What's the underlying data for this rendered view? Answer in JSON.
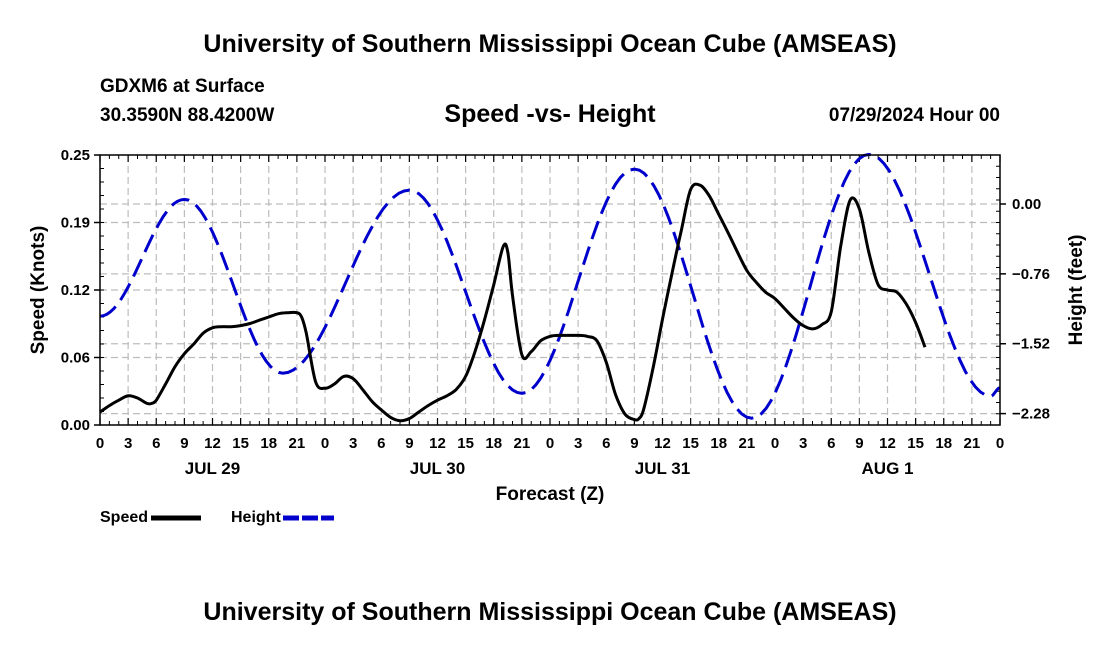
{
  "header": {
    "title": "University of Southern Mississippi Ocean Cube (AMSEAS)",
    "station": "GDXM6 at Surface",
    "coords": "30.3590N  88.4200W",
    "subtitle": "Speed -vs- Height",
    "run_time": "07/29/2024 Hour 00"
  },
  "footer": {
    "title": "University of Southern Mississippi Ocean Cube (AMSEAS)"
  },
  "legend": {
    "speed_label": "Speed",
    "height_label": "Height"
  },
  "colors": {
    "speed": "#000000",
    "height": "#0000cc",
    "grid": "#bdbdbd"
  },
  "chart_data": {
    "type": "line",
    "title": "Speed -vs- Height",
    "xlabel": "Forecast (Z)",
    "ylabel_left": "Speed (Knots)",
    "ylabel_right": "Height (feet)",
    "x_range_hours": [
      0,
      96
    ],
    "x_tick_labels": [
      "0",
      "3",
      "6",
      "9",
      "12",
      "15",
      "18",
      "21",
      "0",
      "3",
      "6",
      "9",
      "12",
      "15",
      "18",
      "21",
      "0",
      "3",
      "6",
      "9",
      "12",
      "15",
      "18",
      "21",
      "0",
      "3",
      "6",
      "9",
      "12",
      "15",
      "18",
      "21",
      "0"
    ],
    "day_labels": [
      {
        "label": "JUL 29",
        "hour": 12
      },
      {
        "label": "JUL 30",
        "hour": 36
      },
      {
        "label": "JUL 31",
        "hour": 60
      },
      {
        "label": "AUG 1",
        "hour": 84
      }
    ],
    "ylim_left": [
      0,
      0.25
    ],
    "yticks_left": [
      {
        "value": 0.0,
        "label": "0.00"
      },
      {
        "value": 0.0625,
        "label": "0.06"
      },
      {
        "value": 0.125,
        "label": "0.12"
      },
      {
        "value": 0.1875,
        "label": "0.19"
      },
      {
        "value": 0.25,
        "label": "0.25"
      }
    ],
    "ylim_right": [
      -2.404,
      0.533
    ],
    "yticks_right": [
      {
        "value": 0.0,
        "label": "0.00"
      },
      {
        "value": -0.76,
        "label": "-0.76"
      },
      {
        "value": -1.52,
        "label": "-1.52"
      },
      {
        "value": -2.28,
        "label": "-2.28"
      }
    ],
    "series": [
      {
        "name": "Speed",
        "axis": "left",
        "style": "solid",
        "points": [
          [
            0,
            0.012
          ],
          [
            1,
            0.018
          ],
          [
            2,
            0.023
          ],
          [
            3,
            0.027
          ],
          [
            4,
            0.025
          ],
          [
            5,
            0.02
          ],
          [
            5.5,
            0.02
          ],
          [
            6,
            0.023
          ],
          [
            7,
            0.038
          ],
          [
            8,
            0.054
          ],
          [
            9,
            0.066
          ],
          [
            10,
            0.075
          ],
          [
            11,
            0.085
          ],
          [
            12,
            0.09
          ],
          [
            13,
            0.091
          ],
          [
            14,
            0.091
          ],
          [
            15,
            0.092
          ],
          [
            16,
            0.094
          ],
          [
            17,
            0.097
          ],
          [
            18,
            0.1
          ],
          [
            19,
            0.103
          ],
          [
            20,
            0.104
          ],
          [
            21,
            0.104
          ],
          [
            21.5,
            0.1
          ],
          [
            22,
            0.085
          ],
          [
            23,
            0.04
          ],
          [
            24,
            0.034
          ],
          [
            25,
            0.038
          ],
          [
            26,
            0.045
          ],
          [
            27,
            0.043
          ],
          [
            28,
            0.033
          ],
          [
            29,
            0.022
          ],
          [
            30,
            0.014
          ],
          [
            31,
            0.007
          ],
          [
            32,
            0.004
          ],
          [
            33,
            0.006
          ],
          [
            34,
            0.012
          ],
          [
            35,
            0.018
          ],
          [
            36,
            0.023
          ],
          [
            37,
            0.027
          ],
          [
            38,
            0.033
          ],
          [
            39,
            0.045
          ],
          [
            40,
            0.068
          ],
          [
            41,
            0.097
          ],
          [
            42,
            0.13
          ],
          [
            43,
            0.165
          ],
          [
            43.5,
            0.16
          ],
          [
            44,
            0.12
          ],
          [
            45,
            0.065
          ],
          [
            46,
            0.068
          ],
          [
            47,
            0.078
          ],
          [
            48,
            0.082
          ],
          [
            49,
            0.083
          ],
          [
            50,
            0.083
          ],
          [
            51,
            0.083
          ],
          [
            52,
            0.082
          ],
          [
            53,
            0.078
          ],
          [
            54,
            0.058
          ],
          [
            55,
            0.028
          ],
          [
            56,
            0.01
          ],
          [
            57,
            0.005
          ],
          [
            57.5,
            0.006
          ],
          [
            58,
            0.015
          ],
          [
            59,
            0.053
          ],
          [
            60,
            0.098
          ],
          [
            61,
            0.14
          ],
          [
            62,
            0.18
          ],
          [
            63,
            0.218
          ],
          [
            64,
            0.222
          ],
          [
            65,
            0.212
          ],
          [
            66,
            0.195
          ],
          [
            67,
            0.178
          ],
          [
            68,
            0.16
          ],
          [
            69,
            0.143
          ],
          [
            70,
            0.132
          ],
          [
            71,
            0.123
          ],
          [
            72,
            0.117
          ],
          [
            73,
            0.108
          ],
          [
            74,
            0.099
          ],
          [
            75,
            0.092
          ],
          [
            76,
            0.089
          ],
          [
            77,
            0.093
          ],
          [
            78,
            0.105
          ],
          [
            79,
            0.165
          ],
          [
            80,
            0.208
          ],
          [
            81,
            0.2
          ],
          [
            82,
            0.16
          ],
          [
            83,
            0.13
          ],
          [
            84,
            0.125
          ],
          [
            85,
            0.123
          ],
          [
            86,
            0.112
          ],
          [
            87,
            0.095
          ],
          [
            88,
            0.072
          ]
        ]
      },
      {
        "name": "Height",
        "axis": "right",
        "style": "dashed",
        "extrema": [
          [
            0,
            -1.22
          ],
          [
            9,
            0.05
          ],
          [
            19.5,
            -1.84
          ],
          [
            33,
            0.15
          ],
          [
            45,
            -2.06
          ],
          [
            57,
            0.38
          ],
          [
            69.5,
            -2.33
          ],
          [
            82,
            0.54
          ],
          [
            95,
            -2.09
          ],
          [
            96,
            -2.0
          ]
        ]
      }
    ]
  }
}
